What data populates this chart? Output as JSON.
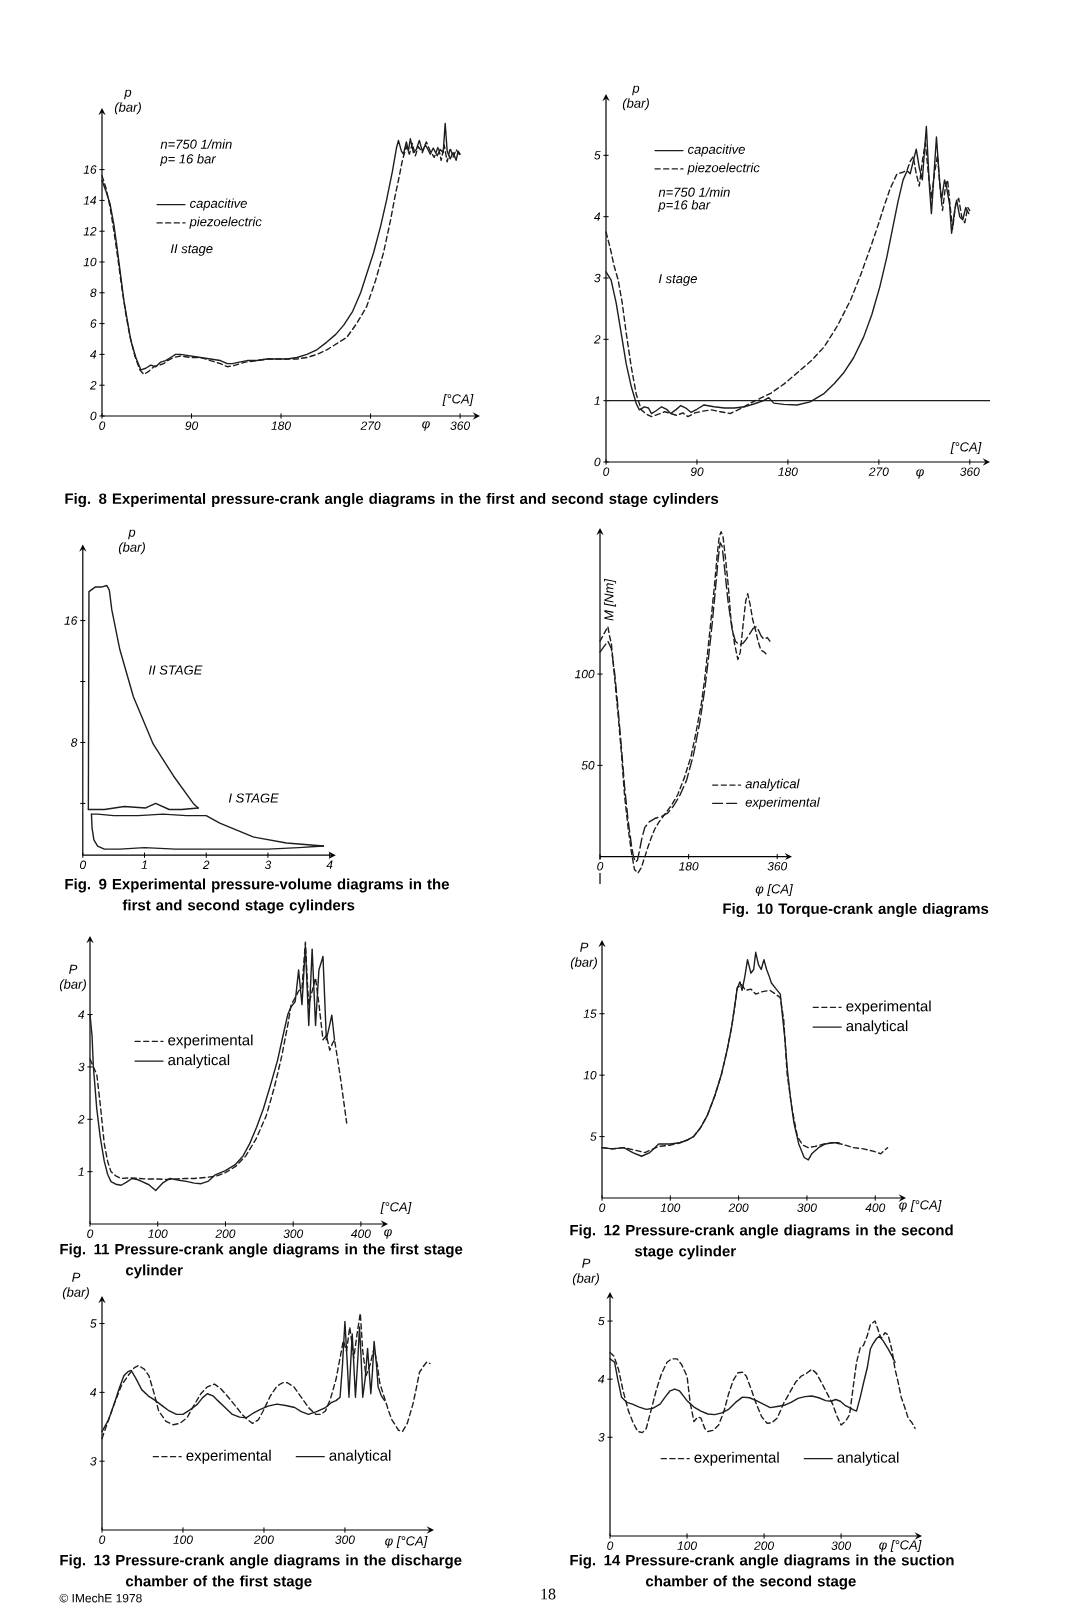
{
  "chart_data": [
    {
      "type": "line",
      "xlabel": "[°CA]",
      "ylabel": "p (bar)",
      "xlim": [
        0,
        380
      ],
      "ylim": [
        0,
        20
      ],
      "xticks": [
        0,
        90,
        180,
        270,
        360
      ],
      "yticks": [
        0,
        2,
        4,
        6,
        8,
        10,
        12,
        14,
        16
      ],
      "legend": "top left",
      "series": [
        {
          "name": "capacitive",
          "color": "#1e1e1e",
          "line_style": "solid",
          "x": [
            0,
            4,
            8,
            12,
            15,
            19,
            22,
            26,
            29,
            34,
            39,
            44,
            49,
            54,
            59,
            64,
            69,
            74,
            79,
            89,
            99,
            109,
            119,
            126,
            131,
            138,
            146,
            156,
            166,
            176,
            186,
            196,
            206,
            216,
            226,
            235,
            243,
            252,
            260,
            266,
            273,
            280,
            286,
            292,
            296,
            298,
            301,
            303,
            306,
            308,
            310,
            313,
            316,
            319,
            322,
            325,
            327,
            330,
            333,
            337,
            340,
            343,
            345,
            347,
            350,
            353,
            356,
            358,
            360
          ],
          "values": [
            15.3,
            14.6,
            13.8,
            12.4,
            11.0,
            9.0,
            7.5,
            6.0,
            4.9,
            3.8,
            3.0,
            3.1,
            3.3,
            3.2,
            3.5,
            3.6,
            3.8,
            4.0,
            4.0,
            3.9,
            3.8,
            3.7,
            3.6,
            3.4,
            3.4,
            3.5,
            3.6,
            3.6,
            3.7,
            3.7,
            3.7,
            3.8,
            4.0,
            4.3,
            4.8,
            5.3,
            5.9,
            6.8,
            8.0,
            9.2,
            10.6,
            12.3,
            14.0,
            15.9,
            17.4,
            17.9,
            17.2,
            17.0,
            17.8,
            17.2,
            18.0,
            17.1,
            17.3,
            17.9,
            17.2,
            17.6,
            17.4,
            17.0,
            17.4,
            16.9,
            17.3,
            17.1,
            19.0,
            17.2,
            16.7,
            17.1,
            16.6,
            17.2,
            17.0
          ]
        },
        {
          "name": "piezoelectric",
          "color": "#1e1e1e",
          "line_style": "dashed",
          "x": [
            0,
            4,
            8,
            12,
            16,
            20,
            24,
            28,
            33,
            38,
            42,
            47,
            52,
            57,
            62,
            66,
            72,
            79,
            89,
            99,
            109,
            119,
            126,
            134,
            144,
            156,
            166,
            176,
            186,
            196,
            206,
            216,
            226,
            236,
            246,
            256,
            266,
            275,
            283,
            290,
            295,
            298,
            302,
            306,
            309,
            312,
            315,
            318,
            322,
            326,
            330,
            334,
            338,
            341,
            344,
            347,
            350,
            353,
            356,
            360
          ],
          "values": [
            15.6,
            14.8,
            13.6,
            12.0,
            10.2,
            8.3,
            6.6,
            5.2,
            3.9,
            3.0,
            2.7,
            2.9,
            3.2,
            3.3,
            3.4,
            3.6,
            3.8,
            3.9,
            3.8,
            3.8,
            3.6,
            3.4,
            3.2,
            3.3,
            3.5,
            3.6,
            3.7,
            3.7,
            3.7,
            3.7,
            3.8,
            4.0,
            4.3,
            4.7,
            5.1,
            6.0,
            7.1,
            8.8,
            10.6,
            12.7,
            14.4,
            15.3,
            16.6,
            17.5,
            17.0,
            17.7,
            16.9,
            17.5,
            17.1,
            17.8,
            17.2,
            16.8,
            17.5,
            16.6,
            17.6,
            16.5,
            17.4,
            16.8,
            17.3,
            16.9
          ]
        }
      ],
      "annotations": [
        "n=750 1/min",
        "p= 16 bar",
        "II stage",
        "φ",
        "Fig. 8 Experimental pressure-crank angle diagrams in the first and second stage cylinders"
      ]
    },
    {
      "type": "line",
      "xlabel": "[°CA]",
      "ylabel": "p (bar)",
      "xlim": [
        0,
        380
      ],
      "ylim": [
        0,
        6
      ],
      "xticks": [
        0,
        90,
        180,
        270,
        360
      ],
      "yticks": [
        0,
        1,
        2,
        3,
        4,
        5
      ],
      "legend": "top left",
      "series": [
        {
          "name": "capacitive",
          "color": "#1e1e1e",
          "line_style": "solid",
          "x": [
            0,
            5,
            10,
            15,
            20,
            25,
            30,
            33,
            38,
            42,
            45,
            50,
            55,
            60,
            64,
            69,
            74,
            79,
            84,
            90,
            97,
            107,
            117,
            127,
            137,
            147,
            156,
            161,
            166,
            176,
            189,
            202,
            216,
            226,
            235,
            245,
            255,
            263,
            271,
            278,
            284,
            289,
            294,
            298,
            301,
            304,
            307,
            310,
            313,
            317,
            320,
            322,
            325,
            327,
            330,
            332,
            335,
            337,
            340,
            342,
            345,
            347,
            350,
            353,
            356,
            359
          ],
          "values": [
            3.1,
            2.97,
            2.6,
            2.1,
            1.6,
            1.23,
            0.95,
            0.85,
            0.9,
            0.88,
            0.79,
            0.84,
            0.9,
            0.86,
            0.79,
            0.85,
            0.92,
            0.88,
            0.81,
            0.86,
            0.93,
            0.9,
            0.88,
            0.88,
            0.9,
            0.95,
            1.0,
            1.05,
            0.96,
            0.94,
            0.93,
            0.98,
            1.12,
            1.28,
            1.45,
            1.7,
            2.04,
            2.4,
            2.86,
            3.35,
            3.84,
            4.25,
            4.6,
            4.75,
            4.7,
            4.9,
            5.1,
            4.8,
            4.6,
            5.47,
            4.5,
            4.05,
            4.8,
            5.3,
            4.6,
            4.27,
            4.6,
            4.48,
            4.2,
            3.73,
            4.1,
            4.27,
            4.0,
            3.95,
            4.15,
            4.05
          ]
        },
        {
          "name": "piezoelectric",
          "color": "#1e1e1e",
          "line_style": "dashed",
          "x": [
            0,
            4,
            8,
            12,
            16,
            20,
            25,
            30,
            35,
            40,
            45,
            52,
            58,
            64,
            70,
            76,
            81,
            88,
            96,
            104,
            113,
            123,
            133,
            143,
            153,
            163,
            176,
            189,
            203,
            216,
            229,
            242,
            252,
            262,
            269,
            275,
            281,
            288,
            293,
            298,
            301,
            304,
            307,
            310,
            313,
            316,
            319,
            322,
            325,
            328,
            331,
            333,
            336,
            338,
            341,
            343,
            346,
            349,
            352,
            355,
            358,
            360
          ],
          "values": [
            3.75,
            3.5,
            3.2,
            2.97,
            2.6,
            2.1,
            1.55,
            1.1,
            0.85,
            0.78,
            0.74,
            0.78,
            0.82,
            0.79,
            0.76,
            0.8,
            0.74,
            0.8,
            0.83,
            0.85,
            0.82,
            0.79,
            0.87,
            0.96,
            1.04,
            1.12,
            1.27,
            1.45,
            1.65,
            1.88,
            2.22,
            2.64,
            3.05,
            3.51,
            3.85,
            4.16,
            4.45,
            4.7,
            4.72,
            4.76,
            4.9,
            4.98,
            4.7,
            4.5,
            4.9,
            5.2,
            4.7,
            4.3,
            4.7,
            5.0,
            4.4,
            4.1,
            4.5,
            4.6,
            4.1,
            3.8,
            4.2,
            4.3,
            4.0,
            3.9,
            4.15,
            4.1
          ]
        }
      ],
      "ref_lines": [
        {
          "axis": "y",
          "value": 1,
          "color": "#1e1e1e"
        }
      ],
      "annotations": [
        "n=750 1/min",
        "p=16 bar",
        "I stage",
        "φ"
      ]
    },
    {
      "type": "line",
      "ylabel": "p (bar)",
      "xlim": [
        0,
        4.1
      ],
      "ylim": [
        0.6,
        21
      ],
      "xticks": [
        0,
        1,
        2,
        3,
        4
      ],
      "yticks": [
        {
          "value": 4,
          "label": null
        },
        8,
        {
          "value": 12,
          "label": null
        },
        16
      ],
      "series": [
        {
          "color": "#1e1e1e",
          "line_style": "solid",
          "x": [
            0.09,
            0.1,
            0.2,
            0.3,
            0.39,
            0.43,
            0.47,
            0.6,
            0.82,
            1.14,
            1.47,
            1.79,
            1.87
          ],
          "values": [
            3.6,
            17.9,
            18.2,
            18.2,
            18.3,
            18.0,
            16.7,
            14.1,
            11.0,
            7.9,
            5.8,
            4.0,
            3.7
          ]
        },
        {
          "color": "#1e1e1e",
          "line_style": "solid",
          "x": [
            0.09,
            0.35,
            0.67,
            1.02,
            1.18,
            1.4,
            1.6,
            1.87
          ],
          "values": [
            3.6,
            3.6,
            3.8,
            3.7,
            4.0,
            3.6,
            3.6,
            3.7
          ]
        },
        {
          "color": "#1e1e1e",
          "line_style": "solid",
          "x": [
            0.14,
            0.24,
            0.5,
            0.9,
            1.3,
            1.68,
            2.0,
            2.22,
            2.76,
            3.3,
            3.9
          ],
          "values": [
            3.3,
            3.3,
            3.2,
            3.2,
            3.3,
            3.2,
            3.2,
            2.7,
            1.8,
            1.4,
            1.2
          ]
        },
        {
          "color": "#1e1e1e",
          "line_style": "solid",
          "x": [
            0.14,
            0.15,
            0.18,
            0.24,
            0.35,
            0.6,
            1.0,
            1.5,
            2.0,
            2.5,
            3.0,
            3.5,
            3.9
          ],
          "values": [
            3.3,
            2.4,
            1.6,
            1.2,
            1.0,
            1.0,
            1.1,
            1.0,
            1.0,
            1.0,
            1.0,
            1.1,
            1.2
          ]
        }
      ],
      "annotations": [
        "II STAGE",
        "I STAGE",
        "Fig. 9 Experimental pressure-volume diagrams in the first and second stage cylinders"
      ]
    },
    {
      "type": "line",
      "xlabel": "φ [CA]",
      "ylabel": "M [Nm]",
      "xlim": [
        0,
        390
      ],
      "ylim": [
        -15,
        180
      ],
      "xticks": [
        0,
        180,
        360
      ],
      "yticks": [
        50,
        100
      ],
      "legend": "bottom right",
      "series": [
        {
          "name": "analytical",
          "color": "#1e1e1e",
          "line_style": "dashed",
          "x": [
            0,
            8,
            16,
            20,
            23,
            30,
            37,
            44,
            50,
            57,
            64,
            70,
            77,
            84,
            90,
            97,
            105,
            111,
            120,
            131,
            145,
            158,
            171,
            185,
            195,
            206,
            213,
            219,
            226,
            233,
            238,
            242,
            246,
            250,
            255,
            260,
            266,
            273,
            280,
            285,
            291,
            296,
            300,
            305,
            310,
            316,
            321,
            327,
            334,
            341
          ],
          "values": [
            118,
            122,
            126,
            120,
            117,
            97,
            77,
            55,
            33,
            16,
            2,
            -7,
            -9,
            -6,
            -1,
            5,
            11,
            15,
            19,
            23,
            28,
            34,
            43,
            55,
            68,
            84,
            98,
            113,
            131,
            150,
            165,
            175,
            178,
            175,
            163,
            150,
            130,
            117,
            108,
            112,
            128,
            140,
            144,
            138,
            130,
            124,
            118,
            113,
            112,
            110
          ]
        },
        {
          "name": "experimental",
          "color": "#1e1e1e",
          "line_style": "dashed",
          "x": [
            0,
            8,
            16,
            23,
            30,
            37,
            44,
            50,
            57,
            64,
            68,
            72,
            76,
            80,
            85,
            91,
            100,
            112,
            125,
            138,
            150,
            163,
            176,
            190,
            203,
            213,
            220,
            228,
            235,
            240,
            244,
            248,
            253,
            260,
            268,
            275,
            283,
            291,
            297,
            304,
            311,
            318,
            322,
            327,
            333,
            340,
            345
          ],
          "values": [
            112,
            115,
            118,
            114,
            100,
            80,
            58,
            38,
            20,
            6,
            0,
            -3,
            -2,
            3,
            10,
            16,
            19,
            21,
            22,
            24,
            28,
            34,
            42,
            56,
            74,
            92,
            108,
            128,
            148,
            163,
            172,
            170,
            158,
            140,
            125,
            118,
            116,
            117,
            119,
            122,
            125,
            126,
            124,
            121,
            119,
            120,
            118
          ]
        }
      ],
      "annotations": [
        "Fig. 10 Torque-crank angle diagrams"
      ]
    },
    {
      "type": "line",
      "xlabel": "[°CA]",
      "ylabel": "P (bar)",
      "xlim": [
        0,
        440
      ],
      "ylim": [
        0,
        5.5
      ],
      "xticks": [
        0,
        100,
        200,
        300,
        400
      ],
      "yticks": [
        1,
        2,
        3,
        4
      ],
      "legend": "top left",
      "series": [
        {
          "name": "experimental",
          "color": "#1e1e1e",
          "line_style": "dashed",
          "x": [
            0,
            5,
            10,
            15,
            21,
            26,
            31,
            38,
            46,
            59,
            72,
            85,
            100,
            113,
            128,
            140,
            154,
            170,
            185,
            200,
            215,
            230,
            245,
            260,
            272,
            283,
            292,
            297,
            302,
            308,
            313,
            318,
            321,
            323,
            328,
            333,
            338,
            344,
            349,
            354,
            358,
            361,
            365,
            369,
            374,
            379
          ],
          "values": [
            3.15,
            3.0,
            2.86,
            2.3,
            1.54,
            1.2,
            1.0,
            0.92,
            0.87,
            0.88,
            0.87,
            0.86,
            0.86,
            0.85,
            0.86,
            0.87,
            0.87,
            0.89,
            0.91,
            0.98,
            1.1,
            1.3,
            1.62,
            2.06,
            2.6,
            3.2,
            3.8,
            4.19,
            4.3,
            4.45,
            4.5,
            5.38,
            4.6,
            4.19,
            4.45,
            4.7,
            4.2,
            3.52,
            3.6,
            3.32,
            3.45,
            3.52,
            3.2,
            2.86,
            2.4,
            1.93
          ]
        },
        {
          "name": "analytical",
          "color": "#1e1e1e",
          "line_style": "solid",
          "x": [
            0,
            3,
            5,
            10,
            15,
            21,
            26,
            31,
            38,
            46,
            54,
            62,
            70,
            77,
            87,
            97,
            107,
            118,
            130,
            144,
            154,
            164,
            175,
            185,
            200,
            215,
            226,
            236,
            246,
            256,
            266,
            277,
            285,
            292,
            297,
            303,
            308,
            313,
            318,
            323,
            328,
            333,
            338,
            344,
            349,
            353,
            357,
            361
          ],
          "values": [
            4.0,
            3.6,
            3.0,
            2.2,
            1.67,
            1.2,
            0.95,
            0.81,
            0.76,
            0.74,
            0.8,
            0.87,
            0.85,
            0.81,
            0.75,
            0.64,
            0.78,
            0.87,
            0.84,
            0.81,
            0.78,
            0.77,
            0.82,
            0.94,
            1.02,
            1.14,
            1.3,
            1.54,
            1.85,
            2.2,
            2.63,
            3.13,
            3.6,
            4.0,
            4.15,
            4.25,
            4.85,
            4.19,
            5.31,
            3.79,
            5.25,
            3.79,
            4.85,
            5.11,
            3.52,
            3.75,
            3.99,
            3.52
          ]
        }
      ],
      "annotations": [
        "φ",
        "Fig. 11 Pressure-crank angle diagrams in the first stage cylinder"
      ]
    },
    {
      "type": "line",
      "xlabel": "φ [°CA]",
      "ylabel": "P (bar)",
      "xlim": [
        0,
        445
      ],
      "ylim": [
        0,
        21
      ],
      "xticks": [
        0,
        100,
        200,
        300,
        400
      ],
      "yticks": [
        5,
        10,
        15
      ],
      "legend": "top right",
      "series": [
        {
          "name": "experimental",
          "color": "#1e1e1e",
          "line_style": "dashed",
          "x": [
            0,
            15,
            32,
            48,
            63,
            83,
            100,
            114,
            124,
            134,
            144,
            154,
            165,
            175,
            183,
            190,
            195,
            198,
            204,
            210,
            218,
            225,
            235,
            246,
            254,
            261,
            266,
            271,
            278,
            286,
            294,
            302,
            312,
            325,
            337,
            350,
            368,
            383,
            398,
            408,
            418
          ],
          "values": [
            4.1,
            4.0,
            4.1,
            3.9,
            3.7,
            4.2,
            4.3,
            4.5,
            4.7,
            5.0,
            5.7,
            6.7,
            8.3,
            10.1,
            12.0,
            14.0,
            15.9,
            17.1,
            17.4,
            16.9,
            17.0,
            16.6,
            16.8,
            16.9,
            16.6,
            16.3,
            14.5,
            10.1,
            7.3,
            5.0,
            4.3,
            4.1,
            4.2,
            4.4,
            4.5,
            4.4,
            4.1,
            4.0,
            3.8,
            3.6,
            4.1
          ]
        },
        {
          "name": "analytical",
          "color": "#1e1e1e",
          "line_style": "solid",
          "x": [
            0,
            15,
            32,
            45,
            58,
            70,
            83,
            100,
            114,
            124,
            134,
            144,
            154,
            165,
            175,
            183,
            190,
            195,
            198,
            202,
            205,
            209,
            213,
            218,
            222,
            225,
            229,
            233,
            237,
            241,
            245,
            248,
            255,
            261,
            264,
            268,
            271,
            276,
            281,
            288,
            296,
            302,
            307,
            317,
            327,
            337,
            347
          ],
          "values": [
            4.1,
            4.0,
            4.1,
            3.7,
            3.4,
            3.7,
            4.4,
            4.4,
            4.5,
            4.7,
            5.0,
            5.7,
            6.7,
            8.3,
            10.1,
            12.0,
            14.0,
            15.9,
            17.1,
            17.6,
            16.9,
            18.0,
            19.4,
            18.3,
            18.6,
            20.0,
            19.0,
            18.6,
            19.4,
            18.6,
            18.0,
            17.5,
            17.0,
            16.6,
            14.9,
            12.8,
            10.6,
            8.1,
            6.1,
            4.4,
            3.3,
            3.1,
            3.6,
            4.1,
            4.4,
            4.5,
            4.5
          ]
        }
      ],
      "annotations": [
        "Fig. 12 Pressure-crank angle diagrams in the second stage cylinder"
      ]
    },
    {
      "type": "line",
      "xlabel": "φ [°CA]",
      "ylabel": "P (bar)",
      "xlim": [
        0,
        410
      ],
      "ylim": [
        2,
        5.4
      ],
      "xticks": [
        0,
        100,
        200,
        300
      ],
      "yticks": [
        3,
        4,
        5
      ],
      "legend": "bottom",
      "series": [
        {
          "name": "experimental",
          "color": "#1e1e1e",
          "line_style": "dashed",
          "x": [
            0,
            8,
            15,
            24,
            32,
            40,
            45,
            52,
            58,
            64,
            70,
            79,
            88,
            96,
            105,
            113,
            122,
            130,
            139,
            147,
            156,
            165,
            173,
            180,
            186,
            193,
            199,
            208,
            216,
            223,
            229,
            237,
            246,
            255,
            264,
            270,
            276,
            282,
            289,
            294,
            298,
            302,
            306,
            311,
            315,
            317,
            319,
            322,
            326,
            331,
            336,
            340,
            343,
            348,
            354,
            358,
            362,
            366,
            371,
            377,
            384,
            388,
            392,
            397,
            401,
            405
          ],
          "values": [
            3.33,
            3.6,
            3.83,
            4.1,
            4.24,
            4.36,
            4.39,
            4.34,
            4.24,
            4.0,
            3.73,
            3.58,
            3.53,
            3.55,
            3.63,
            3.8,
            3.98,
            4.08,
            4.12,
            4.05,
            3.93,
            3.8,
            3.68,
            3.6,
            3.55,
            3.6,
            3.73,
            3.95,
            4.09,
            4.14,
            4.14,
            4.08,
            3.93,
            3.78,
            3.68,
            3.68,
            3.73,
            3.9,
            4.19,
            4.5,
            4.75,
            4.6,
            4.95,
            4.5,
            4.85,
            5.0,
            5.15,
            4.6,
            4.24,
            4.4,
            4.64,
            4.4,
            4.14,
            3.95,
            3.73,
            3.6,
            3.53,
            3.45,
            3.43,
            3.55,
            3.83,
            4.05,
            4.29,
            4.38,
            4.44,
            4.42
          ]
        },
        {
          "name": "analytical",
          "color": "#1e1e1e",
          "line_style": "solid",
          "x": [
            0,
            8,
            15,
            21,
            27,
            32,
            36,
            42,
            49,
            57,
            66,
            75,
            83,
            92,
            100,
            109,
            118,
            124,
            130,
            137,
            143,
            152,
            161,
            170,
            178,
            187,
            195,
            205,
            216,
            227,
            238,
            246,
            255,
            265,
            276,
            283,
            289,
            294,
            297,
            300,
            303,
            305,
            307,
            309,
            311,
            313,
            316,
            318,
            320,
            322,
            325,
            328,
            330,
            332,
            334,
            336,
            339,
            341,
            345,
            349
          ],
          "values": [
            3.43,
            3.6,
            3.83,
            4.05,
            4.24,
            4.3,
            4.32,
            4.2,
            4.04,
            3.95,
            3.88,
            3.8,
            3.73,
            3.68,
            3.68,
            3.75,
            3.83,
            3.92,
            3.98,
            3.95,
            3.88,
            3.78,
            3.68,
            3.64,
            3.63,
            3.7,
            3.75,
            3.8,
            3.83,
            3.81,
            3.78,
            3.72,
            3.68,
            3.72,
            3.78,
            3.85,
            3.88,
            3.93,
            4.4,
            5.03,
            4.4,
            3.93,
            4.4,
            4.85,
            4.4,
            3.93,
            4.5,
            4.95,
            4.5,
            3.93,
            4.2,
            4.64,
            4.3,
            3.98,
            4.3,
            4.74,
            4.4,
            4.08,
            3.95,
            3.88
          ]
        }
      ],
      "annotations": [
        "Fig. 13 Pressure-crank angle diagrams in the discharge chamber of the first stage",
        "© IMechE 1978",
        "18"
      ]
    },
    {
      "type": "line",
      "xlabel": "φ [°CA]",
      "ylabel": "P (bar)",
      "xlim": [
        0,
        405
      ],
      "ylim": [
        1.3,
        5.5
      ],
      "xticks": [
        0,
        100,
        200,
        300
      ],
      "yticks": [
        3,
        4,
        5
      ],
      "legend": "bottom",
      "series": [
        {
          "name": "experimental",
          "color": "#1e1e1e",
          "line_style": "dashed",
          "x": [
            0,
            5,
            11,
            17,
            24,
            30,
            36,
            42,
            47,
            53,
            60,
            67,
            74,
            80,
            87,
            93,
            100,
            104,
            109,
            114,
            118,
            123,
            127,
            134,
            141,
            148,
            154,
            160,
            166,
            172,
            177,
            184,
            190,
            197,
            204,
            210,
            217,
            226,
            235,
            241,
            248,
            255,
            262,
            268,
            275,
            282,
            289,
            295,
            300,
            306,
            311,
            316,
            320,
            325,
            329,
            334,
            338,
            344,
            348,
            352,
            357,
            361,
            366,
            370,
            374,
            378,
            383,
            387,
            392,
            396
          ],
          "values": [
            4.46,
            4.4,
            4.17,
            3.8,
            3.45,
            3.25,
            3.1,
            3.08,
            3.15,
            3.45,
            3.81,
            4.1,
            4.29,
            4.35,
            4.35,
            4.25,
            4.05,
            3.6,
            3.27,
            3.35,
            3.33,
            3.15,
            3.1,
            3.12,
            3.21,
            3.45,
            3.75,
            3.98,
            4.11,
            4.12,
            4.05,
            3.8,
            3.57,
            3.35,
            3.24,
            3.25,
            3.33,
            3.6,
            3.81,
            3.95,
            4.05,
            4.1,
            4.17,
            4.1,
            3.93,
            3.75,
            3.57,
            3.35,
            3.21,
            3.28,
            3.39,
            3.9,
            4.29,
            4.55,
            4.58,
            4.75,
            4.94,
            5.0,
            4.85,
            4.7,
            4.8,
            4.76,
            4.5,
            4.17,
            3.95,
            3.69,
            3.5,
            3.33,
            3.25,
            3.15
          ]
        },
        {
          "name": "analytical",
          "color": "#1e1e1e",
          "line_style": "solid",
          "x": [
            0,
            6,
            10,
            15,
            22,
            29,
            38,
            47,
            56,
            65,
            72,
            78,
            84,
            90,
            96,
            100,
            109,
            118,
            127,
            136,
            145,
            154,
            163,
            172,
            181,
            190,
            199,
            208,
            217,
            226,
            235,
            244,
            253,
            262,
            271,
            280,
            287,
            293,
            299,
            305,
            311,
            316,
            320,
            325,
            329,
            334,
            338,
            341,
            346,
            350,
            355,
            361,
            366,
            370
          ],
          "values": [
            4.35,
            4.29,
            4.0,
            3.69,
            3.6,
            3.57,
            3.52,
            3.48,
            3.5,
            3.57,
            3.7,
            3.8,
            3.83,
            3.8,
            3.7,
            3.63,
            3.52,
            3.45,
            3.4,
            3.39,
            3.42,
            3.48,
            3.6,
            3.69,
            3.68,
            3.63,
            3.57,
            3.51,
            3.53,
            3.55,
            3.6,
            3.67,
            3.7,
            3.71,
            3.68,
            3.63,
            3.62,
            3.65,
            3.62,
            3.55,
            3.51,
            3.47,
            3.45,
            3.7,
            3.93,
            4.2,
            4.52,
            4.6,
            4.7,
            4.74,
            4.65,
            4.52,
            4.4,
            4.29
          ]
        }
      ],
      "annotations": [
        "Fig. 14 Pressure-crank angle diagrams in the suction chamber of the second stage"
      ]
    }
  ]
}
